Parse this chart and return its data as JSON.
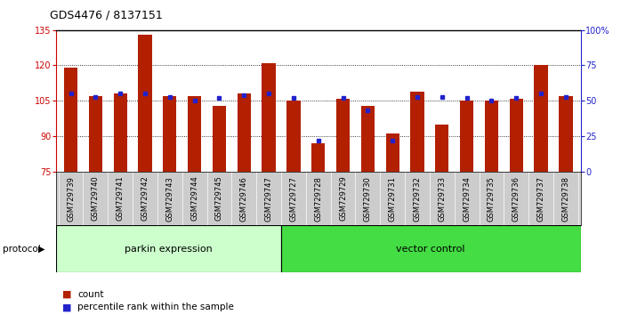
{
  "title": "GDS4476 / 8137151",
  "samples": [
    "GSM729739",
    "GSM729740",
    "GSM729741",
    "GSM729742",
    "GSM729743",
    "GSM729744",
    "GSM729745",
    "GSM729746",
    "GSM729747",
    "GSM729727",
    "GSM729728",
    "GSM729729",
    "GSM729730",
    "GSM729731",
    "GSM729732",
    "GSM729733",
    "GSM729734",
    "GSM729735",
    "GSM729736",
    "GSM729737",
    "GSM729738"
  ],
  "red_values": [
    119,
    107,
    108,
    133,
    107,
    107,
    103,
    108,
    121,
    105,
    87,
    106,
    103,
    91,
    109,
    95,
    105,
    105,
    106,
    120,
    107
  ],
  "blue_values_pct": [
    55,
    53,
    55,
    55,
    53,
    50,
    52,
    54,
    55,
    52,
    22,
    52,
    43,
    22,
    53,
    53,
    52,
    50,
    52,
    55,
    53
  ],
  "parkin_count": 9,
  "vector_count": 12,
  "ylim_left": [
    75,
    135
  ],
  "ylim_right": [
    0,
    100
  ],
  "yticks_left": [
    75,
    90,
    105,
    120,
    135
  ],
  "yticks_right": [
    0,
    25,
    50,
    75,
    100
  ],
  "ytick_labels_right": [
    "0",
    "25",
    "50",
    "75",
    "100%"
  ],
  "bar_color": "#B22000",
  "dot_color": "#2222CC",
  "parkin_bg": "#CCFFCC",
  "vector_bg": "#44DD44",
  "label_bg": "#CCCCCC",
  "xlabel_color": "#CC0000",
  "right_axis_color": "#2222CC",
  "grid_color": "black",
  "protocol_label": "protocol",
  "parkin_label": "parkin expression",
  "vector_label": "vector control",
  "legend_count": "count",
  "legend_pct": "percentile rank within the sample",
  "title_fontsize": 9,
  "tick_fontsize": 7,
  "label_fontsize": 6,
  "proto_fontsize": 8,
  "legend_fontsize": 7.5
}
